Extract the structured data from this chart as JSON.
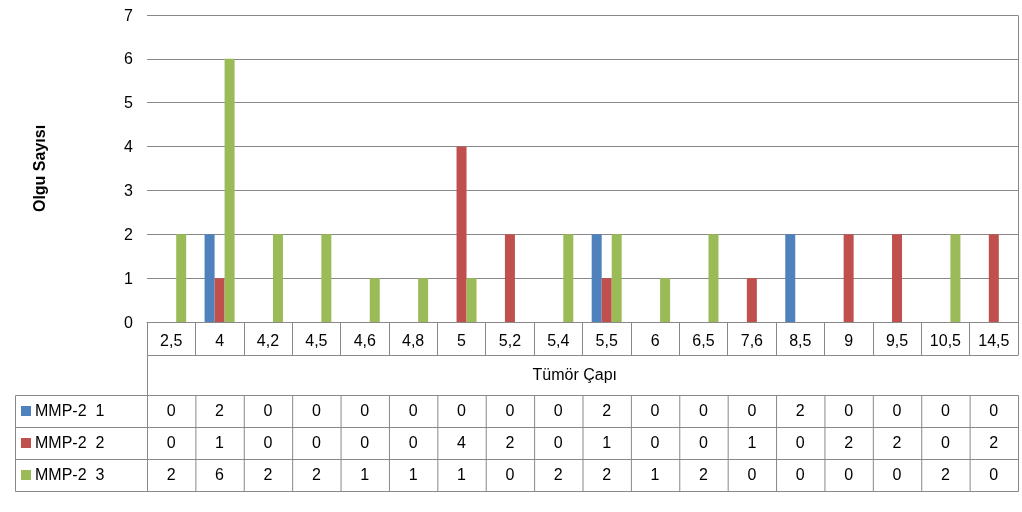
{
  "chart_data": {
    "type": "bar",
    "xlabel": "Tümör Çapı",
    "ylabel": "Olgu Sayısı",
    "categories": [
      "2,5",
      "4",
      "4,2",
      "4,5",
      "4,6",
      "4,8",
      "5",
      "5,2",
      "5,4",
      "5,5",
      "6",
      "6,5",
      "7,6",
      "8,5",
      "9",
      "9,5",
      "10,5",
      "14,5"
    ],
    "series": [
      {
        "name": "MMP-2  1",
        "color": "#4f81bd",
        "values": [
          0,
          2,
          0,
          0,
          0,
          0,
          0,
          0,
          0,
          2,
          0,
          0,
          0,
          2,
          0,
          0,
          0,
          0
        ]
      },
      {
        "name": "MMP-2  2",
        "color": "#c0504d",
        "values": [
          0,
          1,
          0,
          0,
          0,
          0,
          4,
          2,
          0,
          1,
          0,
          0,
          1,
          0,
          2,
          2,
          0,
          2
        ]
      },
      {
        "name": "MMP-2  3",
        "color": "#9bbb59",
        "values": [
          2,
          6,
          2,
          2,
          1,
          1,
          1,
          0,
          2,
          2,
          1,
          2,
          0,
          0,
          0,
          0,
          2,
          0
        ]
      }
    ],
    "ylim": [
      0,
      7
    ],
    "yticks": [
      0,
      1,
      2,
      3,
      4,
      5,
      6,
      7
    ],
    "grid": "y",
    "legend": "bottom",
    "data_labels": true
  }
}
